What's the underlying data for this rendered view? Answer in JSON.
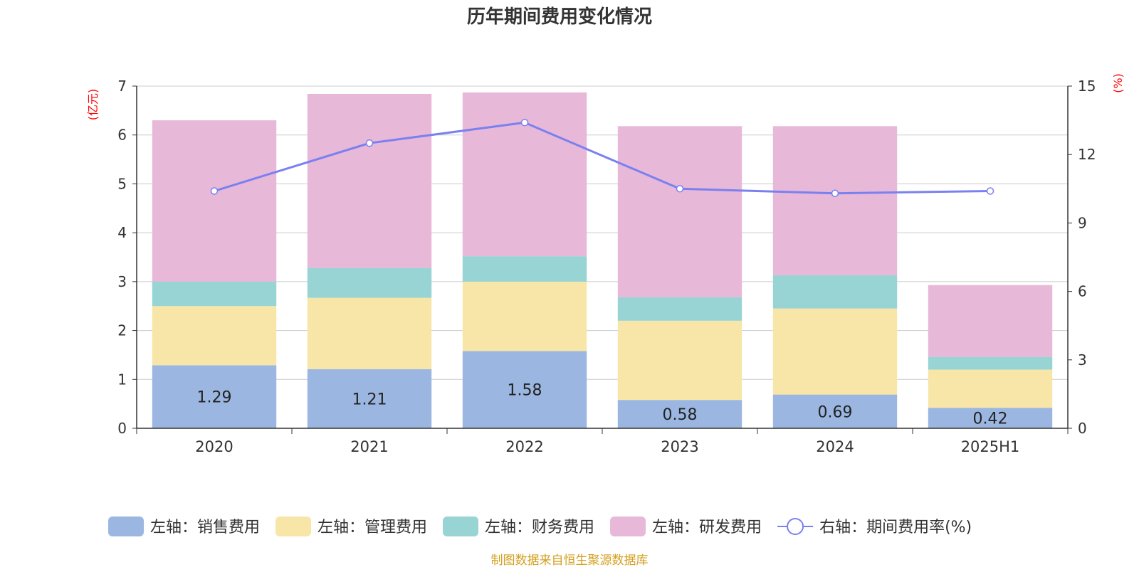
{
  "chart_data": {
    "type": "bar",
    "title": "历年期间费用变化情况",
    "categories": [
      "2020",
      "2021",
      "2022",
      "2023",
      "2024",
      "2025H1"
    ],
    "left_axis": {
      "unit_label": "(亿元)",
      "ylim": [
        0,
        7
      ],
      "ticks": [
        "0",
        "1",
        "2",
        "3",
        "4",
        "5",
        "6",
        "7"
      ]
    },
    "right_axis": {
      "unit_label": "(%)",
      "ylim": [
        0,
        15
      ],
      "ticks": [
        "0",
        "3",
        "6",
        "9",
        "12",
        "15"
      ]
    },
    "series": [
      {
        "name": "左轴：销售费用",
        "type": "bar",
        "axis": "left",
        "color": "#9BB7E1",
        "values": [
          1.29,
          1.21,
          1.58,
          0.58,
          0.69,
          0.42
        ],
        "labels": [
          "1.29",
          "1.21",
          "1.58",
          "0.58",
          "0.69",
          "0.42"
        ]
      },
      {
        "name": "左轴：管理费用",
        "type": "bar",
        "axis": "left",
        "color": "#F7E6A8",
        "values": [
          1.21,
          1.46,
          1.42,
          1.62,
          1.76,
          0.78
        ]
      },
      {
        "name": "左轴：财务费用",
        "type": "bar",
        "axis": "left",
        "color": "#98D4D4",
        "values": [
          0.5,
          0.61,
          0.52,
          0.48,
          0.68,
          0.26
        ]
      },
      {
        "name": "左轴：研发费用",
        "type": "bar",
        "axis": "left",
        "color": "#E7B8D8",
        "values": [
          3.3,
          3.56,
          3.35,
          3.5,
          3.05,
          1.47
        ]
      },
      {
        "name": "右轴：期间费用率(%)",
        "type": "line",
        "axis": "right",
        "color": "#7B80F0",
        "values": [
          10.4,
          12.5,
          13.4,
          10.5,
          10.3,
          10.4
        ]
      }
    ],
    "grid": true,
    "legend_position": "bottom"
  },
  "source_note": "制图数据来自恒生聚源数据库",
  "colors": {
    "axis_unit": "#FF0000",
    "source_note": "#D4A020",
    "grid": "#CCCCCC",
    "axis_line": "#333333"
  }
}
